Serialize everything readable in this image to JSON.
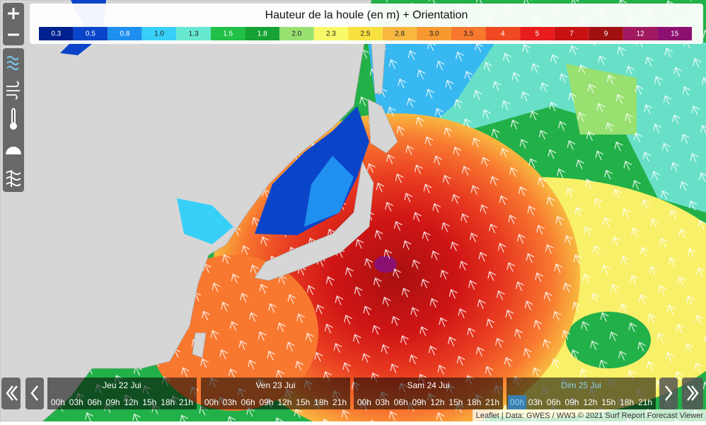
{
  "legend": {
    "title": "Hauteur de la houle (en m) + Orientation",
    "items": [
      {
        "label": "0.3",
        "color": "#00208f"
      },
      {
        "label": "0.5",
        "color": "#0a44c8"
      },
      {
        "label": "0.8",
        "color": "#2090f0"
      },
      {
        "label": "1.0",
        "color": "#38cff8"
      },
      {
        "label": "1.3",
        "color": "#68e8d0"
      },
      {
        "label": "1.5",
        "color": "#22c048"
      },
      {
        "label": "1.8",
        "color": "#17a235"
      },
      {
        "label": "2.0",
        "color": "#98e070"
      },
      {
        "label": "2.3",
        "color": "#f8f868"
      },
      {
        "label": "2.5",
        "color": "#f8e040"
      },
      {
        "label": "2.8",
        "color": "#f8b840"
      },
      {
        "label": "3.0",
        "color": "#f89830"
      },
      {
        "label": "3.5",
        "color": "#f87830"
      },
      {
        "label": "4",
        "color": "#f04a22"
      },
      {
        "label": "5",
        "color": "#e81c1c"
      },
      {
        "label": "7",
        "color": "#c81212"
      },
      {
        "label": "9",
        "color": "#a01010"
      },
      {
        "label": "12",
        "color": "#a01860"
      },
      {
        "label": "15",
        "color": "#8c1070"
      }
    ]
  },
  "timeline": {
    "days": [
      {
        "label": "Jeu 22 Jui",
        "hours": [
          "00h",
          "03h",
          "06h",
          "09h",
          "12h",
          "15h",
          "18h",
          "21h"
        ]
      },
      {
        "label": "Ven 23 Jui",
        "hours": [
          "00h",
          "03h",
          "06h",
          "09h",
          "12h",
          "15h",
          "18h",
          "21h"
        ]
      },
      {
        "label": "Sam 24 Jui",
        "hours": [
          "00h",
          "03h",
          "06h",
          "09h",
          "12h",
          "15h",
          "18h",
          "21h"
        ]
      },
      {
        "label": "Dim 25 Jui",
        "hours": [
          "00h",
          "03h",
          "06h",
          "09h",
          "12h",
          "15h",
          "18h",
          "21h"
        ]
      }
    ]
  },
  "attribution": "Leaflet | Data: GWES / WW3 © 2021 Surf Report Forecast Viewer"
}
